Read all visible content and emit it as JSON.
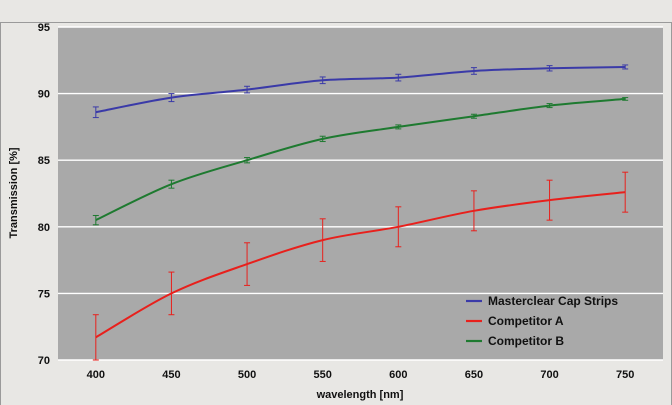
{
  "header": {
    "caption_fragment": ""
  },
  "chart_data": {
    "type": "line",
    "title": "",
    "xlabel": "wavelength [nm]",
    "ylabel": "Transmission [%]",
    "categories": [
      "400",
      "450",
      "500",
      "550",
      "600",
      "650",
      "700",
      "750"
    ],
    "ylim": [
      70,
      95
    ],
    "yticks": [
      "70",
      "75",
      "80",
      "85",
      "90",
      "95"
    ],
    "grid": true,
    "legend_position": "bottom-right",
    "series": [
      {
        "name": "Masterclear Cap Strips",
        "color": "#3a3aa8",
        "values": [
          88.6,
          89.7,
          90.3,
          91.0,
          91.2,
          91.7,
          91.9,
          92.0
        ],
        "errors": [
          0.4,
          0.3,
          0.25,
          0.25,
          0.25,
          0.25,
          0.2,
          0.15
        ]
      },
      {
        "name": "Competitor A",
        "color": "#e8201c",
        "values": [
          71.7,
          75.0,
          77.2,
          79.0,
          80.0,
          81.2,
          82.0,
          82.6
        ],
        "errors": [
          1.7,
          1.6,
          1.6,
          1.6,
          1.5,
          1.5,
          1.5,
          1.5
        ]
      },
      {
        "name": "Competitor B",
        "color": "#1e7a30",
        "values": [
          80.5,
          83.2,
          85.0,
          86.6,
          87.5,
          88.3,
          89.1,
          89.6
        ],
        "errors": [
          0.35,
          0.3,
          0.2,
          0.2,
          0.15,
          0.15,
          0.15,
          0.1
        ]
      }
    ]
  }
}
